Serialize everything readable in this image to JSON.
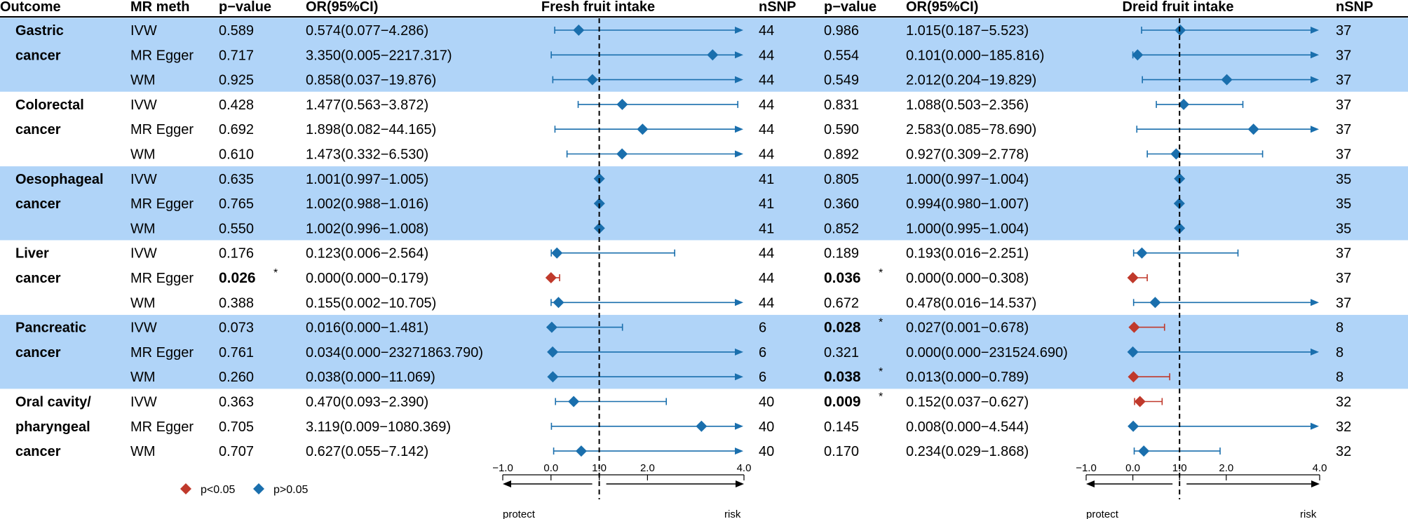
{
  "chart_data": {
    "type": "forest",
    "headers": {
      "outcome": "Outcome",
      "method": "MR meth",
      "pvalue_left": "p−value",
      "or_left": "OR(95%CI)",
      "panel_left": "Fresh fruit intake",
      "nsnp_left": "nSNP",
      "pvalue_right": "p−value",
      "or_right": "OR(95%CI)",
      "panel_right": "Dreid fruit intake",
      "nsnp_right": "nSNP"
    },
    "groups": [
      {
        "name": [
          "Gastric",
          "cancer"
        ],
        "shaded": true,
        "rows": [
          {
            "method": "IVW",
            "fresh": {
              "p": "0.589",
              "sig": false,
              "or_text": "0.574(0.077−4.286)",
              "or": 0.574,
              "lo": 0.077,
              "hi": 4.286,
              "nsnp": "44"
            },
            "dried": {
              "p": "0.986",
              "sig": false,
              "or_text": "1.015(0.187−5.523)",
              "or": 1.015,
              "lo": 0.187,
              "hi": 5.523,
              "nsnp": "37"
            }
          },
          {
            "method": "MR Egger",
            "fresh": {
              "p": "0.717",
              "sig": false,
              "or_text": "3.350(0.005−2217.317)",
              "or": 3.35,
              "lo": 0.005,
              "hi": 2217.317,
              "nsnp": "44"
            },
            "dried": {
              "p": "0.554",
              "sig": false,
              "or_text": "0.101(0.000−185.816)",
              "or": 0.101,
              "lo": 0.0,
              "hi": 185.816,
              "nsnp": "37"
            }
          },
          {
            "method": "WM",
            "fresh": {
              "p": "0.925",
              "sig": false,
              "or_text": "0.858(0.037−19.876)",
              "or": 0.858,
              "lo": 0.037,
              "hi": 19.876,
              "nsnp": "44"
            },
            "dried": {
              "p": "0.549",
              "sig": false,
              "or_text": "2.012(0.204−19.829)",
              "or": 2.012,
              "lo": 0.204,
              "hi": 19.829,
              "nsnp": "37"
            }
          }
        ]
      },
      {
        "name": [
          "Colorectal",
          "cancer"
        ],
        "shaded": false,
        "rows": [
          {
            "method": "IVW",
            "fresh": {
              "p": "0.428",
              "sig": false,
              "or_text": "1.477(0.563−3.872)",
              "or": 1.477,
              "lo": 0.563,
              "hi": 3.872,
              "nsnp": "44"
            },
            "dried": {
              "p": "0.831",
              "sig": false,
              "or_text": "1.088(0.503−2.356)",
              "or": 1.088,
              "lo": 0.503,
              "hi": 2.356,
              "nsnp": "37"
            }
          },
          {
            "method": "MR Egger",
            "fresh": {
              "p": "0.692",
              "sig": false,
              "or_text": "1.898(0.082−44.165)",
              "or": 1.898,
              "lo": 0.082,
              "hi": 44.165,
              "nsnp": "44"
            },
            "dried": {
              "p": "0.590",
              "sig": false,
              "or_text": "2.583(0.085−78.690)",
              "or": 2.583,
              "lo": 0.085,
              "hi": 78.69,
              "nsnp": "37"
            }
          },
          {
            "method": "WM",
            "fresh": {
              "p": "0.610",
              "sig": false,
              "or_text": "1.473(0.332−6.530)",
              "or": 1.473,
              "lo": 0.332,
              "hi": 6.53,
              "nsnp": "44"
            },
            "dried": {
              "p": "0.892",
              "sig": false,
              "or_text": "0.927(0.309−2.778)",
              "or": 0.927,
              "lo": 0.309,
              "hi": 2.778,
              "nsnp": "37"
            }
          }
        ]
      },
      {
        "name": [
          "Oesophageal",
          "cancer"
        ],
        "shaded": true,
        "rows": [
          {
            "method": "IVW",
            "fresh": {
              "p": "0.635",
              "sig": false,
              "or_text": "1.001(0.997−1.005)",
              "or": 1.001,
              "lo": 0.997,
              "hi": 1.005,
              "nsnp": "41"
            },
            "dried": {
              "p": "0.805",
              "sig": false,
              "or_text": "1.000(0.997−1.004)",
              "or": 1.0,
              "lo": 0.997,
              "hi": 1.004,
              "nsnp": "35"
            }
          },
          {
            "method": "MR Egger",
            "fresh": {
              "p": "0.765",
              "sig": false,
              "or_text": "1.002(0.988−1.016)",
              "or": 1.002,
              "lo": 0.988,
              "hi": 1.016,
              "nsnp": "41"
            },
            "dried": {
              "p": "0.360",
              "sig": false,
              "or_text": "0.994(0.980−1.007)",
              "or": 0.994,
              "lo": 0.98,
              "hi": 1.007,
              "nsnp": "35"
            }
          },
          {
            "method": "WM",
            "fresh": {
              "p": "0.550",
              "sig": false,
              "or_text": "1.002(0.996−1.008)",
              "or": 1.002,
              "lo": 0.996,
              "hi": 1.008,
              "nsnp": "41"
            },
            "dried": {
              "p": "0.852",
              "sig": false,
              "or_text": "1.000(0.995−1.004)",
              "or": 1.0,
              "lo": 0.995,
              "hi": 1.004,
              "nsnp": "35"
            }
          }
        ]
      },
      {
        "name": [
          "Liver",
          "cancer"
        ],
        "shaded": false,
        "rows": [
          {
            "method": "IVW",
            "fresh": {
              "p": "0.176",
              "sig": false,
              "or_text": "0.123(0.006−2.564)",
              "or": 0.123,
              "lo": 0.006,
              "hi": 2.564,
              "nsnp": "44"
            },
            "dried": {
              "p": "0.189",
              "sig": false,
              "or_text": "0.193(0.016−2.251)",
              "or": 0.193,
              "lo": 0.016,
              "hi": 2.251,
              "nsnp": "37"
            }
          },
          {
            "method": "MR Egger",
            "fresh": {
              "p": "0.026",
              "sig": true,
              "or_text": "0.000(0.000−0.179)",
              "or": 0.0,
              "lo": 0.0,
              "hi": 0.179,
              "nsnp": "44"
            },
            "dried": {
              "p": "0.036",
              "sig": true,
              "or_text": "0.000(0.000−0.308)",
              "or": 0.0,
              "lo": 0.0,
              "hi": 0.308,
              "nsnp": "37"
            }
          },
          {
            "method": "WM",
            "fresh": {
              "p": "0.388",
              "sig": false,
              "or_text": "0.155(0.002−10.705)",
              "or": 0.155,
              "lo": 0.002,
              "hi": 10.705,
              "nsnp": "44"
            },
            "dried": {
              "p": "0.672",
              "sig": false,
              "or_text": "0.478(0.016−14.537)",
              "or": 0.478,
              "lo": 0.016,
              "hi": 14.537,
              "nsnp": "37"
            }
          }
        ]
      },
      {
        "name": [
          "Pancreatic",
          "cancer"
        ],
        "shaded": true,
        "rows": [
          {
            "method": "IVW",
            "fresh": {
              "p": "0.073",
              "sig": false,
              "or_text": "0.016(0.000−1.481)",
              "or": 0.016,
              "lo": 0.0,
              "hi": 1.481,
              "nsnp": "6"
            },
            "dried": {
              "p": "0.028",
              "sig": true,
              "or_text": "0.027(0.001−0.678)",
              "or": 0.027,
              "lo": 0.001,
              "hi": 0.678,
              "nsnp": "8"
            }
          },
          {
            "method": "MR Egger",
            "fresh": {
              "p": "0.761",
              "sig": false,
              "or_text": "0.034(0.000−23271863.790)",
              "or": 0.034,
              "lo": 0.0,
              "hi": 23271863.79,
              "nsnp": "6"
            },
            "dried": {
              "p": "0.321",
              "sig": false,
              "or_text": "0.000(0.000−231524.690)",
              "or": 0.0,
              "lo": 0.0,
              "hi": 231524.69,
              "nsnp": "8"
            }
          },
          {
            "method": "WM",
            "fresh": {
              "p": "0.260",
              "sig": false,
              "or_text": "0.038(0.000−11.069)",
              "or": 0.038,
              "lo": 0.0,
              "hi": 11.069,
              "nsnp": "6"
            },
            "dried": {
              "p": "0.038",
              "sig": true,
              "or_text": "0.013(0.000−0.789)",
              "or": 0.013,
              "lo": 0.0,
              "hi": 0.789,
              "nsnp": "8"
            }
          }
        ]
      },
      {
        "name": [
          "Oral cavity/",
          "pharyngeal",
          "cancer"
        ],
        "shaded": false,
        "rows": [
          {
            "method": "IVW",
            "fresh": {
              "p": "0.363",
              "sig": false,
              "or_text": "0.470(0.093−2.390)",
              "or": 0.47,
              "lo": 0.093,
              "hi": 2.39,
              "nsnp": "40"
            },
            "dried": {
              "p": "0.009",
              "sig": true,
              "or_text": "0.152(0.037−0.627)",
              "or": 0.152,
              "lo": 0.037,
              "hi": 0.627,
              "nsnp": "32"
            }
          },
          {
            "method": "MR Egger",
            "fresh": {
              "p": "0.705",
              "sig": false,
              "or_text": "3.119(0.009−1080.369)",
              "or": 3.119,
              "lo": 0.009,
              "hi": 1080.369,
              "nsnp": "40"
            },
            "dried": {
              "p": "0.145",
              "sig": false,
              "or_text": "0.008(0.000−4.544)",
              "or": 0.008,
              "lo": 0.0,
              "hi": 4.544,
              "nsnp": "32"
            }
          },
          {
            "method": "WM",
            "fresh": {
              "p": "0.707",
              "sig": false,
              "or_text": "0.627(0.055−7.142)",
              "or": 0.627,
              "lo": 0.055,
              "hi": 7.142,
              "nsnp": "40"
            },
            "dried": {
              "p": "0.170",
              "sig": false,
              "or_text": "0.234(0.029−1.868)",
              "or": 0.234,
              "lo": 0.029,
              "hi": 1.868,
              "nsnp": "32"
            }
          }
        ]
      }
    ],
    "significance_marker": "*",
    "xaxis": {
      "range": [
        -1.0,
        4.0
      ],
      "ticks": [
        -1.0,
        0.0,
        1.0,
        2.0,
        4.0
      ],
      "tick_labels": [
        "−1.0",
        "0.0",
        "1.0",
        "2.0",
        "4.0"
      ],
      "reference_line": 1.0,
      "left_label": "protect",
      "right_label": "risk"
    },
    "legend": [
      {
        "label": "p<0.05",
        "color": "#c0392b"
      },
      {
        "label": "p>0.05",
        "color": "#1a6fad"
      }
    ],
    "colors": {
      "significant": "#c0392b",
      "nonsignificant": "#1a6fad",
      "band": "#b0d4f8"
    }
  }
}
